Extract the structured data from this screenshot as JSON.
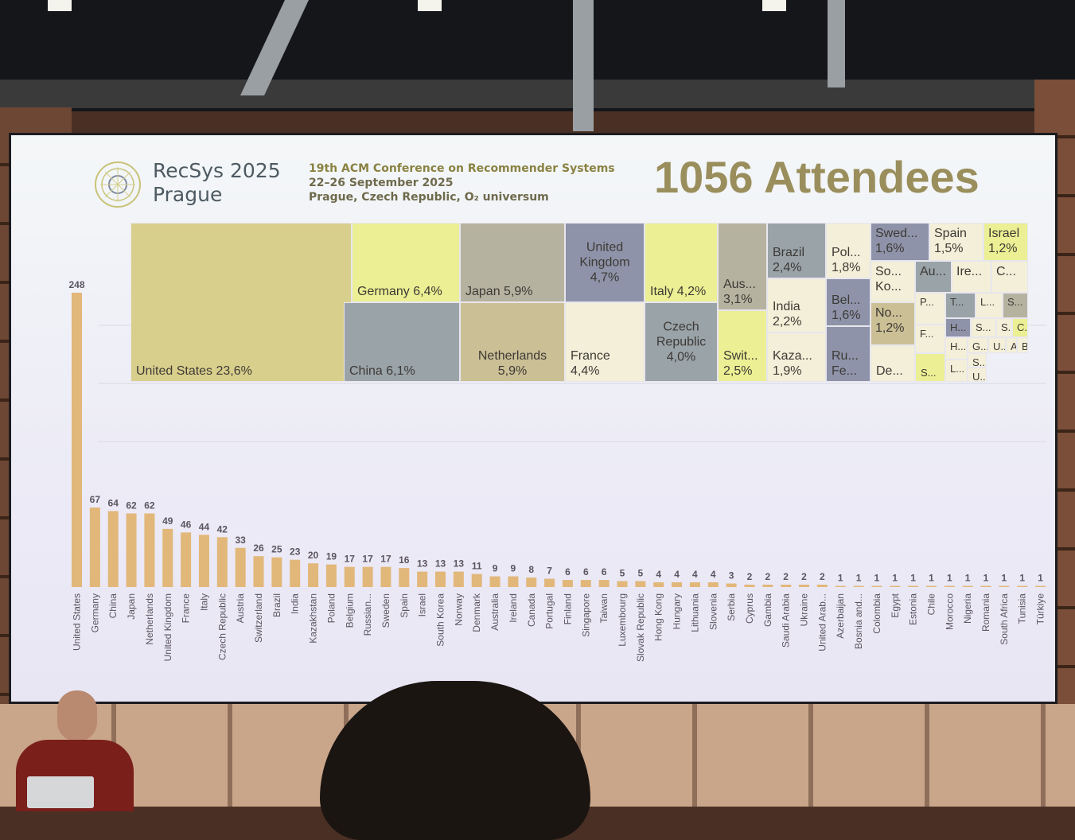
{
  "slide": {
    "brand_title": "RecSys 2025",
    "brand_city": "Prague",
    "conference_name": "19th ACM Conference on Recommender Systems",
    "conference_dates": "22–26 September 2025",
    "conference_venue": "Prague, Czech Republic, O₂ universum",
    "headline": "1056 Attendees"
  },
  "colors": {
    "bar": "#e2b77a",
    "olive": "#d9cf8c",
    "yellow": "#ecef93",
    "gray": "#b6b2a0",
    "blue_gray": "#9aa3a8",
    "slate": "#8e93a9",
    "cream": "#f3efd8",
    "sand": "#cbbf95"
  },
  "chart_data": [
    {
      "type": "treemap",
      "cells": [
        {
          "label": "United States 23,6%",
          "value": 23.6,
          "color": "olive"
        },
        {
          "label": "Germany 6,4%",
          "value": 6.4,
          "color": "yellow"
        },
        {
          "label": "China 6,1%",
          "value": 6.1,
          "color": "blue_gray"
        },
        {
          "label": "Japan 5,9%",
          "value": 5.9,
          "color": "gray"
        },
        {
          "label": "Netherlands\n5,9%",
          "value": 5.9,
          "color": "sand"
        },
        {
          "label": "United\nKingdom\n4,7%",
          "value": 4.7,
          "color": "slate"
        },
        {
          "label": "France\n4,4%",
          "value": 4.4,
          "color": "cream"
        },
        {
          "label": "Italy 4,2%",
          "value": 4.2,
          "color": "yellow"
        },
        {
          "label": "Czech\nRepublic\n4,0%",
          "value": 4.0,
          "color": "blue_gray"
        },
        {
          "label": "Aus...\n3,1%",
          "value": 3.1,
          "color": "gray"
        },
        {
          "label": "Swit...\n2,5%",
          "value": 2.5,
          "color": "yellow"
        },
        {
          "label": "Brazil\n2,4%",
          "value": 2.4,
          "color": "blue_gray"
        },
        {
          "label": "India\n2,2%",
          "value": 2.2,
          "color": "cream"
        },
        {
          "label": "Kaza...\n1,9%",
          "value": 1.9,
          "color": "cream"
        },
        {
          "label": "Pol...\n1,8%",
          "value": 1.8,
          "color": "cream"
        },
        {
          "label": "Bel...\n1,6%",
          "value": 1.6,
          "color": "slate"
        },
        {
          "label": "Ru...\nFe...",
          "value": 1.6,
          "color": "slate"
        },
        {
          "label": "Swed...\n1,6%",
          "value": 1.6,
          "color": "slate"
        },
        {
          "label": "Spain\n1,5%",
          "value": 1.5,
          "color": "cream"
        },
        {
          "label": "Israel\n1,2%",
          "value": 1.2,
          "color": "yellow"
        },
        {
          "label": "So...\nKo...",
          "value": 1.2,
          "color": "cream"
        },
        {
          "label": "No...\n1,2%",
          "value": 1.2,
          "color": "sand"
        },
        {
          "label": "De...",
          "value": 1.0,
          "color": "cream"
        },
        {
          "label": "Au...",
          "value": 0.9,
          "color": "blue_gray"
        },
        {
          "label": "Ire...",
          "value": 0.9,
          "color": "cream"
        },
        {
          "label": "C...",
          "value": 0.8,
          "color": "cream"
        },
        {
          "label": "P...",
          "value": 0.7,
          "color": "cream"
        },
        {
          "label": "F...",
          "value": 0.6,
          "color": "cream"
        },
        {
          "label": "S...",
          "value": 0.6,
          "color": "yellow"
        },
        {
          "label": "T...",
          "value": 0.6,
          "color": "blue_gray"
        },
        {
          "label": "L...",
          "value": 0.5,
          "color": "cream"
        },
        {
          "label": "S...",
          "value": 0.5,
          "color": "gray"
        },
        {
          "label": "H...",
          "value": 0.4,
          "color": "slate"
        },
        {
          "label": "S...",
          "value": 0.4,
          "color": "cream"
        },
        {
          "label": "S...",
          "value": 0.4,
          "color": "cream"
        },
        {
          "label": "C...",
          "value": 0.4,
          "color": "yellow"
        },
        {
          "label": "H...",
          "value": 0.4,
          "color": "cream"
        },
        {
          "label": "G...",
          "value": 0.2,
          "color": "cream"
        },
        {
          "label": "U...",
          "value": 0.2,
          "color": "cream"
        },
        {
          "label": "A...",
          "value": 0.2,
          "color": "cream"
        },
        {
          "label": "B...",
          "value": 0.2,
          "color": "cream"
        },
        {
          "label": "S...",
          "value": 0.2,
          "color": "cream"
        },
        {
          "label": "L...",
          "value": 0.2,
          "color": "cream"
        },
        {
          "label": "U...",
          "value": 0.2,
          "color": "cream"
        }
      ]
    },
    {
      "type": "bar",
      "categories": [
        "United States",
        "Germany",
        "China",
        "Japan",
        "Netherlands",
        "United Kingdom",
        "France",
        "Italy",
        "Czech Republic",
        "Austria",
        "Switzerland",
        "Brazil",
        "India",
        "Kazakhstan",
        "Poland",
        "Belgium",
        "Russian...",
        "Sweden",
        "Spain",
        "Israel",
        "South Korea",
        "Norway",
        "Denmark",
        "Australia",
        "Ireland",
        "Canada",
        "Portugal",
        "Finland",
        "Singapore",
        "Taiwan",
        "Luxembourg",
        "Slovak Republic",
        "Hong Kong",
        "Hungary",
        "Lithuania",
        "Slovenia",
        "Serbia",
        "Cyprus",
        "Gambia",
        "Saudi Arabia",
        "Ukraine",
        "United Arab...",
        "Azerbaijan",
        "Bosnia and...",
        "Colombia",
        "Egypt",
        "Estonia",
        "Chile",
        "Morocco",
        "Nigeria",
        "Romania",
        "South Africa",
        "Tunisia",
        "Türkiye"
      ],
      "values": [
        248,
        67,
        64,
        62,
        62,
        49,
        46,
        44,
        42,
        33,
        26,
        25,
        23,
        20,
        19,
        17,
        17,
        17,
        16,
        13,
        13,
        13,
        11,
        9,
        9,
        8,
        7,
        6,
        6,
        6,
        5,
        5,
        4,
        4,
        4,
        4,
        3,
        2,
        2,
        2,
        2,
        2,
        1,
        1,
        1,
        1,
        1,
        1,
        1,
        1,
        1,
        1,
        1,
        1
      ],
      "ylim": [
        0,
        250
      ],
      "grid": true
    }
  ]
}
